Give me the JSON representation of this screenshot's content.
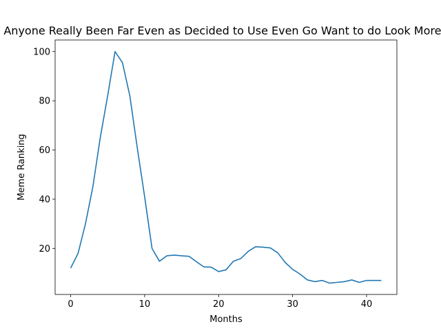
{
  "chart_data": {
    "type": "line",
    "title": "Has Anyone Really Been Far Even as Decided to Use Even Go Want to do Look More Like?",
    "xlabel": "Months",
    "ylabel": "Meme Ranking",
    "xlim": [
      -2.1,
      44.1
    ],
    "ylim": [
      1.3,
      104.7
    ],
    "xticks": [
      0,
      10,
      20,
      30,
      40
    ],
    "yticks": [
      20,
      40,
      60,
      80,
      100
    ],
    "grid": false,
    "legend": "none",
    "series": [
      {
        "color": "#1f77b4",
        "x": [
          0,
          1,
          2,
          3,
          4,
          5,
          6,
          7,
          8,
          9,
          10,
          11,
          12,
          13,
          14,
          15,
          16,
          17,
          18,
          19,
          20,
          21,
          22,
          23,
          24,
          25,
          26,
          27,
          28,
          29,
          30,
          31,
          32,
          33,
          34,
          35,
          36,
          37,
          38,
          39,
          40,
          41,
          42
        ],
        "y": [
          12,
          18,
          30,
          45,
          65,
          82,
          100,
          95.5,
          82,
          61,
          41,
          20,
          14.8,
          17,
          17.3,
          17,
          16.8,
          14.6,
          12.5,
          12.4,
          10.6,
          11.3,
          14.8,
          15.9,
          18.8,
          20.7,
          20.5,
          20.2,
          18.2,
          14.3,
          11.5,
          9.6,
          7.2,
          6.5,
          7,
          5.9,
          6.2,
          6.5,
          7.2,
          6.2,
          7,
          7,
          7
        ]
      }
    ]
  }
}
